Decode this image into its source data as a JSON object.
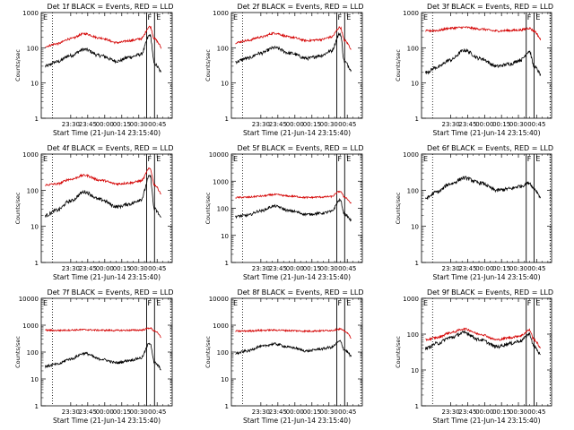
{
  "figure": {
    "colors": {
      "events": "#000000",
      "lld": "#d40000",
      "axes": "#000000"
    },
    "xaxis_label": "Start Time (21-Jun-14 23:15:40)",
    "yaxis_label": "Counts/sec",
    "y_ticks": [
      "1",
      "10",
      "100",
      "1000",
      "10000"
    ],
    "x_ticks": [
      "23:30",
      "23:45",
      "00:00",
      "00:15",
      "00:30",
      "00:45"
    ],
    "region_labels": [
      "E",
      "F",
      "E"
    ]
  },
  "chart_data": [
    {
      "type": "line",
      "title": "Det 1f BLACK = Events, RED = LLD",
      "ylim": [
        1,
        1000
      ],
      "y_scale": "log",
      "series": [
        {
          "name": "Events",
          "color": "#000000",
          "values": [
            30,
            40,
            60,
            90,
            60,
            42,
            55,
            65,
            230,
            35
          ]
        },
        {
          "name": "LLD",
          "color": "#d40000",
          "values": [
            110,
            130,
            180,
            250,
            190,
            140,
            160,
            180,
            400,
            180
          ]
        }
      ]
    },
    {
      "type": "line",
      "title": "Det 2f BLACK = Events, RED = LLD",
      "ylim": [
        1,
        1000
      ],
      "y_scale": "log",
      "series": [
        {
          "name": "Events",
          "color": "#000000",
          "values": [
            40,
            50,
            70,
            100,
            70,
            50,
            60,
            80,
            250,
            40
          ]
        },
        {
          "name": "LLD",
          "color": "#d40000",
          "values": [
            140,
            160,
            200,
            260,
            200,
            160,
            170,
            200,
            380,
            160
          ]
        }
      ]
    },
    {
      "type": "line",
      "title": "Det 3f BLACK = Events, RED = LLD",
      "ylim": [
        1,
        1000
      ],
      "y_scale": "log",
      "series": [
        {
          "name": "Events",
          "color": "#000000",
          "values": [
            20,
            28,
            45,
            85,
            50,
            30,
            35,
            45,
            80,
            30
          ]
        },
        {
          "name": "LLD",
          "color": "#d40000",
          "values": [
            300,
            310,
            360,
            380,
            340,
            300,
            310,
            320,
            360,
            300
          ]
        }
      ]
    },
    {
      "type": "line",
      "title": "Det 4f BLACK = Events, RED = LLD",
      "ylim": [
        1,
        1000
      ],
      "y_scale": "log",
      "series": [
        {
          "name": "Events",
          "color": "#000000",
          "values": [
            20,
            28,
            50,
            90,
            55,
            35,
            42,
            55,
            250,
            30
          ]
        },
        {
          "name": "LLD",
          "color": "#d40000",
          "values": [
            140,
            150,
            200,
            260,
            190,
            150,
            160,
            180,
            400,
            140
          ]
        }
      ]
    },
    {
      "type": "line",
      "title": "Det 5f BLACK = Events, RED = LLD",
      "ylim": [
        1,
        10000
      ],
      "y_scale": "log",
      "series": [
        {
          "name": "Events",
          "color": "#000000",
          "values": [
            50,
            55,
            80,
            120,
            80,
            60,
            65,
            75,
            200,
            60
          ]
        },
        {
          "name": "LLD",
          "color": "#d40000",
          "values": [
            250,
            255,
            280,
            320,
            280,
            250,
            260,
            270,
            420,
            260
          ]
        }
      ]
    },
    {
      "type": "line",
      "title": "Det 6f BLACK = Events, RED = LLD",
      "ylim": [
        1,
        1000
      ],
      "y_scale": "log",
      "series": [
        {
          "name": "Events",
          "color": "#000000",
          "values": [
            60,
            90,
            150,
            220,
            160,
            100,
            110,
            130,
            160,
            110
          ]
        }
      ]
    },
    {
      "type": "line",
      "title": "Det 7f BLACK = Events, RED = LLD",
      "ylim": [
        1,
        10000
      ],
      "y_scale": "log",
      "series": [
        {
          "name": "Events",
          "color": "#000000",
          "values": [
            30,
            35,
            55,
            90,
            55,
            40,
            50,
            60,
            220,
            40
          ]
        },
        {
          "name": "LLD",
          "color": "#d40000",
          "values": [
            650,
            640,
            660,
            680,
            650,
            640,
            650,
            660,
            780,
            620
          ]
        }
      ]
    },
    {
      "type": "line",
      "title": "Det 8f BLACK = Events, RED = LLD",
      "ylim": [
        1,
        10000
      ],
      "y_scale": "log",
      "series": [
        {
          "name": "Events",
          "color": "#000000",
          "values": [
            90,
            110,
            160,
            200,
            150,
            110,
            130,
            150,
            250,
            120
          ]
        },
        {
          "name": "LLD",
          "color": "#d40000",
          "values": [
            600,
            610,
            640,
            660,
            630,
            600,
            620,
            640,
            720,
            600
          ]
        }
      ]
    },
    {
      "type": "line",
      "title": "Det 9f BLACK = Events, RED = LLD",
      "ylim": [
        1,
        1000
      ],
      "y_scale": "log",
      "series": [
        {
          "name": "Events",
          "color": "#000000",
          "values": [
            40,
            55,
            80,
            110,
            70,
            45,
            55,
            65,
            100,
            45
          ]
        },
        {
          "name": "LLD",
          "color": "#d40000",
          "values": [
            70,
            80,
            110,
            140,
            100,
            70,
            80,
            90,
            130,
            70
          ]
        }
      ]
    }
  ]
}
